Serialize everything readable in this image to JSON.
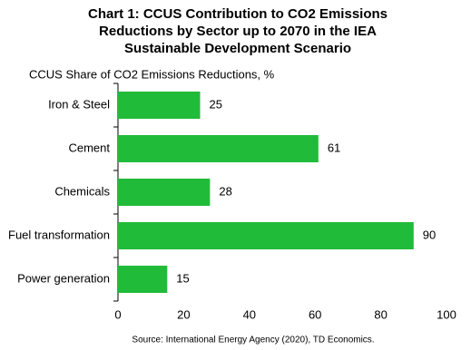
{
  "chart_data": {
    "type": "hbar",
    "title": [
      "Chart 1: CCUS Contribution to CO2 Emissions",
      "Reductions by Sector up to 2070 in the IEA",
      "Sustainable Development Scenario"
    ],
    "axis_label": "CCUS Share of CO2 Emissions Reductions, %",
    "source": "Source: International Energy Agency (2020), TD Economics.",
    "categories": [
      "Iron & Steel",
      "Cement",
      "Chemicals",
      "Fuel transformation",
      "Power generation"
    ],
    "values": [
      25,
      61,
      28,
      90,
      15
    ],
    "color": "#21bb3a",
    "xlim": [
      0,
      100
    ],
    "xticks": [
      0,
      20,
      40,
      60,
      80,
      100
    ],
    "grid": false
  }
}
